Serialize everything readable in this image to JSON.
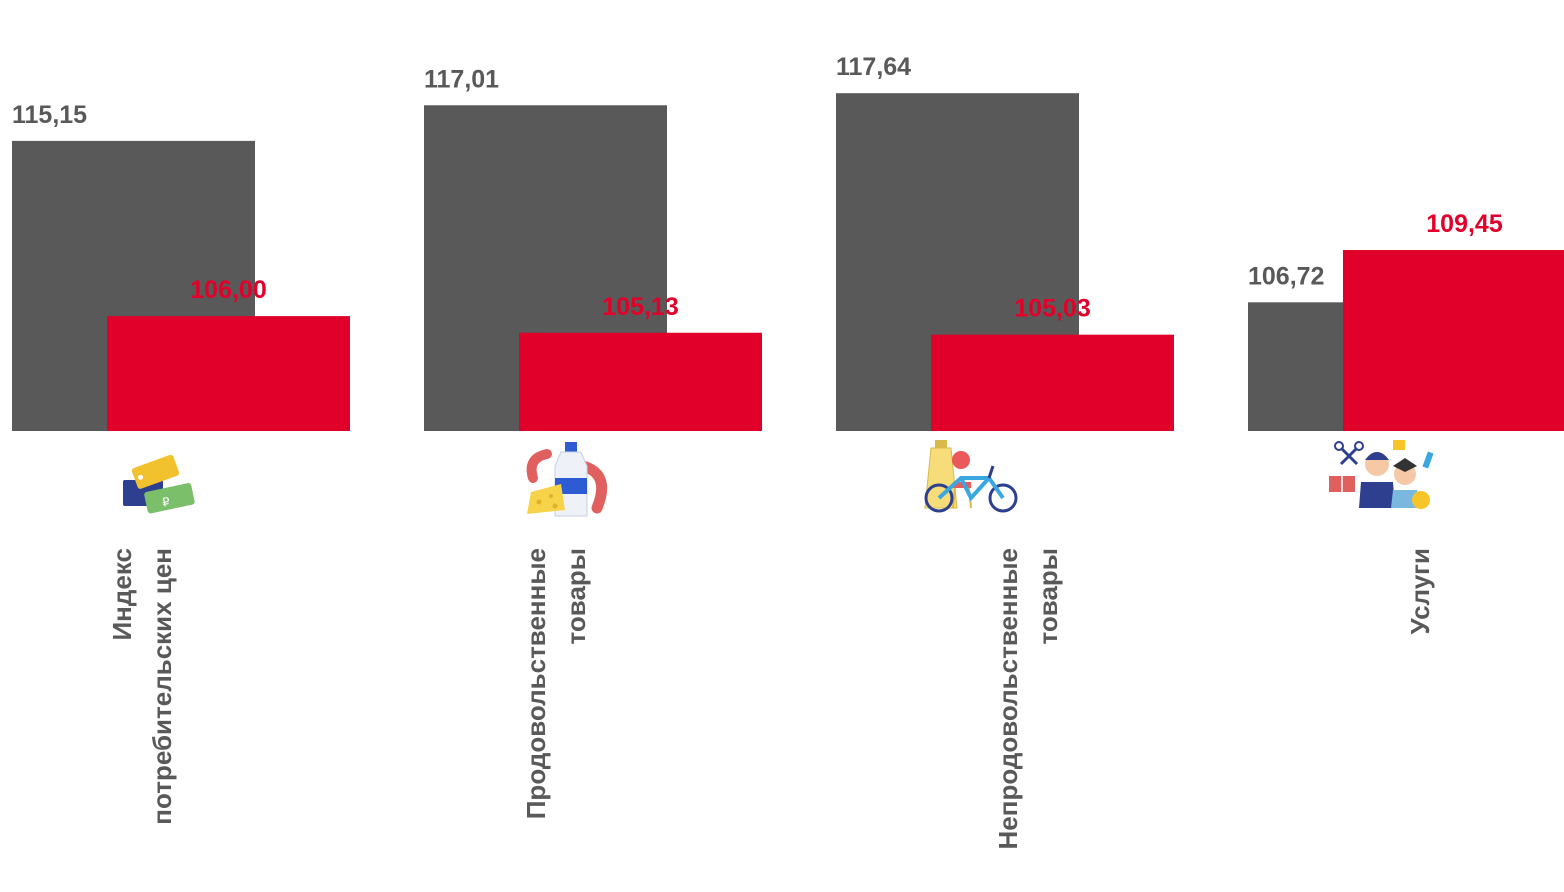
{
  "chart_data": {
    "type": "bar",
    "categories": [
      [
        "Индекс",
        "потребительских цен"
      ],
      [
        "Продовольственные",
        "товары"
      ],
      [
        "Непродовольственные",
        "товары"
      ],
      [
        "Услуги"
      ]
    ],
    "icons": [
      "price-tags-icon",
      "food-products-icon",
      "non-food-goods-icon",
      "services-people-icon"
    ],
    "series": [
      {
        "values": [
          115.15,
          117.01,
          117.64,
          106.72
        ],
        "labels": [
          "115,15",
          "117,01",
          "117,64",
          "106,72"
        ],
        "color": "#595959"
      },
      {
        "values": [
          106.0,
          105.13,
          105.03,
          109.45
        ],
        "labels": [
          "106,00",
          "105,13",
          "105,03",
          "109,45"
        ],
        "color": "#e1002a"
      }
    ],
    "grid": false,
    "legend": "none"
  }
}
